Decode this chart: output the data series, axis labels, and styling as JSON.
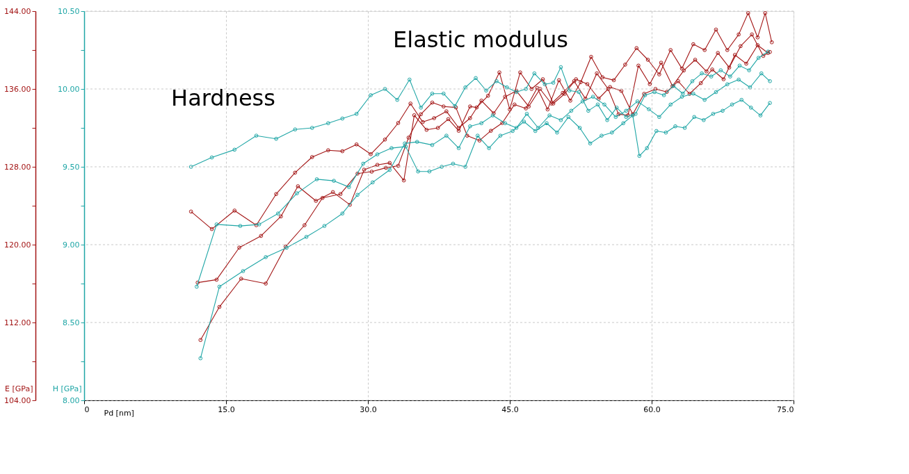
{
  "chart_data": {
    "type": "line",
    "xlabel": "Pd [nm]",
    "ylabel": "E [GPa]",
    "y2label": "H [GPa]",
    "annotations": [
      "Hardness",
      "Elastic modulus"
    ],
    "marker": "circle",
    "line_style": "solid",
    "grid": true,
    "legend": false,
    "xlim": [
      0,
      75
    ],
    "xticks": [
      0,
      {
        "value": 15,
        "label": "15.0"
      },
      {
        "value": 30,
        "label": "30.0"
      },
      {
        "value": 45,
        "label": "45.0"
      },
      {
        "value": 60,
        "label": "60.0"
      },
      {
        "value": 75,
        "label": "75.0"
      }
    ],
    "ylim": [
      104,
      144
    ],
    "yticks": [
      {
        "value": 104,
        "label": "104.00"
      },
      {
        "value": 108,
        "label": null
      },
      {
        "value": 112,
        "label": "112.00"
      },
      {
        "value": 116,
        "label": null
      },
      {
        "value": 120,
        "label": "120.00"
      },
      {
        "value": 124,
        "label": null
      },
      {
        "value": 128,
        "label": "128.00"
      },
      {
        "value": 132,
        "label": null
      },
      {
        "value": 136,
        "label": "136.00"
      },
      {
        "value": 140,
        "label": null
      },
      {
        "value": 144,
        "label": "144.00"
      }
    ],
    "y2lim": [
      8,
      10.5
    ],
    "y2ticks": [
      {
        "value": 8,
        "label": "8.00"
      },
      {
        "value": 8.25,
        "label": null
      },
      {
        "value": 8.5,
        "label": "8.50"
      },
      {
        "value": 8.75,
        "label": null
      },
      {
        "value": 9,
        "label": "9.00"
      },
      {
        "value": 9.25,
        "label": null
      },
      {
        "value": 9.5,
        "label": "9.50"
      },
      {
        "value": 9.75,
        "label": null
      },
      {
        "value": 10,
        "label": "10.00"
      },
      {
        "value": 10.25,
        "label": null
      },
      {
        "value": 10.5,
        "label": "10.50"
      }
    ],
    "series": [
      {
        "color": "#a31515",
        "axis": "y",
        "x": [
          11.3,
          13.5,
          15.9,
          18.2,
          20.3,
          22.3,
          24.1,
          25.8,
          27.3,
          28.8,
          30.3,
          31.8,
          33.2,
          34.5,
          35.8,
          37.0,
          38.3,
          39.6,
          40.8,
          42.0,
          43.3,
          44.5,
          45.7,
          47.0,
          48.2,
          49.4,
          50.6,
          51.8,
          53.0,
          54.2,
          55.4,
          56.5,
          57.5,
          58.6,
          59.8,
          61.0,
          62.2,
          63.4,
          64.6,
          65.8,
          67.0,
          68.2,
          69.4,
          70.6,
          71.8,
          72.5
        ],
        "values": [
          123.4,
          121.6,
          123.5,
          122.0,
          125.2,
          127.4,
          129.0,
          129.7,
          129.6,
          130.3,
          129.3,
          130.8,
          132.5,
          134.5,
          132.6,
          133.0,
          133.7,
          132.0,
          133.0,
          134.8,
          133.5,
          135.2,
          135.8,
          134.2,
          136.0,
          134.5,
          135.6,
          136.8,
          135.0,
          137.6,
          136.0,
          133.4,
          133.3,
          138.4,
          136.5,
          138.7,
          136.3,
          137.9,
          139.0,
          137.8,
          139.7,
          138.2,
          140.4,
          141.6,
          139.4,
          139.8
        ]
      },
      {
        "color": "#a31515",
        "axis": "y",
        "x": [
          12.0,
          14.0,
          16.4,
          18.7,
          20.8,
          22.6,
          24.5,
          26.3,
          28.1,
          29.6,
          31.0,
          32.3,
          33.8,
          34.9,
          36.2,
          37.4,
          38.5,
          39.6,
          40.8,
          41.5,
          42.7,
          43.9,
          45.0,
          46.1,
          47.3,
          48.5,
          49.6,
          50.8,
          52.0,
          53.2,
          54.4,
          55.6,
          56.8,
          58.0,
          59.2,
          60.4,
          61.6,
          62.8,
          64.0,
          65.2,
          66.4,
          67.6,
          68.8,
          70.0,
          71.2,
          72.3
        ],
        "values": [
          116.1,
          116.4,
          119.7,
          120.9,
          122.9,
          126.0,
          124.5,
          125.4,
          124.1,
          127.7,
          128.2,
          128.4,
          126.6,
          133.3,
          131.8,
          132.0,
          132.9,
          131.7,
          134.2,
          134.1,
          135.3,
          137.7,
          133.9,
          137.7,
          136.0,
          137.0,
          134.5,
          135.5,
          137.0,
          136.5,
          135.0,
          136.2,
          135.8,
          133.4,
          135.5,
          136.0,
          135.7,
          136.8,
          135.5,
          136.6,
          138.0,
          137.0,
          139.5,
          138.6,
          140.5,
          139.7
        ]
      },
      {
        "color": "#a31515",
        "axis": "y",
        "x": [
          12.3,
          14.3,
          16.6,
          19.2,
          21.3,
          23.3,
          25.2,
          27.1,
          28.9,
          30.4,
          31.9,
          33.2,
          34.3,
          35.6,
          36.8,
          38.0,
          39.3,
          40.5,
          41.8,
          43.0,
          44.2,
          45.5,
          46.7,
          47.9,
          49.0,
          50.2,
          51.4,
          52.5,
          53.6,
          54.8,
          56.0,
          57.2,
          58.4,
          59.6,
          60.8,
          62.0,
          63.2,
          64.4,
          65.6,
          66.8,
          68.0,
          69.2,
          70.2,
          71.2,
          72.0,
          72.7
        ],
        "values": [
          110.2,
          113.6,
          116.5,
          116.0,
          119.8,
          122.0,
          124.8,
          125.2,
          127.3,
          127.5,
          127.9,
          128.1,
          131.0,
          133.4,
          134.6,
          134.2,
          134.1,
          131.2,
          130.7,
          131.7,
          132.5,
          134.4,
          134.0,
          136.1,
          133.9,
          136.9,
          134.8,
          136.7,
          139.3,
          137.2,
          136.9,
          138.5,
          140.2,
          139.0,
          137.5,
          140.0,
          138.1,
          140.6,
          140.0,
          142.1,
          140.0,
          141.6,
          143.8,
          141.3,
          143.8,
          140.8
        ]
      },
      {
        "color": "#1fa6a6",
        "axis": "y2",
        "x": [
          11.3,
          13.5,
          15.9,
          18.2,
          20.3,
          22.3,
          24.1,
          25.8,
          27.3,
          28.8,
          30.3,
          31.8,
          33.1,
          34.4,
          35.6,
          36.8,
          38.0,
          39.2,
          40.3,
          41.4,
          42.5,
          43.6,
          44.7,
          45.7,
          46.7,
          47.6,
          48.7,
          49.6,
          50.4,
          51.3,
          52.3,
          53.3,
          54.3,
          55.3,
          56.3,
          57.3,
          58.3,
          59.3,
          60.3,
          61.3,
          62.3,
          63.3,
          64.3,
          65.3,
          66.3,
          67.3,
          68.3,
          69.3,
          70.3,
          71.3,
          72.3
        ],
        "values": [
          9.5,
          9.56,
          9.61,
          9.7,
          9.68,
          9.74,
          9.75,
          9.78,
          9.81,
          9.84,
          9.96,
          10.0,
          9.93,
          10.06,
          9.88,
          9.97,
          9.97,
          9.89,
          10.01,
          10.07,
          9.99,
          10.05,
          10.01,
          9.98,
          10.0,
          10.1,
          10.03,
          10.04,
          10.14,
          9.99,
          9.98,
          9.86,
          9.9,
          9.8,
          9.88,
          9.82,
          9.84,
          9.96,
          9.98,
          9.96,
          10.02,
          9.97,
          10.05,
          10.1,
          10.08,
          10.12,
          10.08,
          10.15,
          10.12,
          10.2,
          10.24
        ]
      },
      {
        "color": "#1fa6a6",
        "axis": "y2",
        "x": [
          11.9,
          14.0,
          16.5,
          18.5,
          20.5,
          22.5,
          24.6,
          26.4,
          28.0,
          29.5,
          31.0,
          32.5,
          34.0,
          35.3,
          36.5,
          37.8,
          39.0,
          40.3,
          41.6,
          42.8,
          44.0,
          45.3,
          46.5,
          47.7,
          48.9,
          50.0,
          51.2,
          52.4,
          53.5,
          54.7,
          55.8,
          57.0,
          58.0,
          58.7,
          59.5,
          60.5,
          61.5,
          62.5,
          63.5,
          64.5,
          65.5,
          66.5,
          67.5,
          68.5,
          69.5,
          70.5,
          71.5,
          72.5
        ],
        "values": [
          8.73,
          9.13,
          9.12,
          9.13,
          9.2,
          9.33,
          9.42,
          9.41,
          9.37,
          9.52,
          9.58,
          9.62,
          9.63,
          9.47,
          9.47,
          9.5,
          9.52,
          9.5,
          9.7,
          9.62,
          9.7,
          9.73,
          9.79,
          9.73,
          9.78,
          9.72,
          9.82,
          9.75,
          9.65,
          9.7,
          9.72,
          9.78,
          9.83,
          9.57,
          9.62,
          9.73,
          9.72,
          9.76,
          9.75,
          9.82,
          9.8,
          9.84,
          9.86,
          9.9,
          9.93,
          9.88,
          9.83,
          9.91
        ]
      },
      {
        "color": "#1fa6a6",
        "axis": "y2",
        "x": [
          12.3,
          14.3,
          16.8,
          19.2,
          21.4,
          23.5,
          25.4,
          27.3,
          28.9,
          30.5,
          32.3,
          33.9,
          35.2,
          36.8,
          38.3,
          39.6,
          40.8,
          42.0,
          43.2,
          44.5,
          45.7,
          46.8,
          48.0,
          49.2,
          50.4,
          51.5,
          52.7,
          53.8,
          55.0,
          56.2,
          57.3,
          58.5,
          59.7,
          60.8,
          62.0,
          63.2,
          64.4,
          65.6,
          66.8,
          68.0,
          69.2,
          70.4,
          71.6,
          72.5
        ],
        "values": [
          8.27,
          8.73,
          8.83,
          8.92,
          8.98,
          9.05,
          9.12,
          9.2,
          9.32,
          9.4,
          9.48,
          9.65,
          9.66,
          9.64,
          9.7,
          9.62,
          9.76,
          9.78,
          9.83,
          9.78,
          9.75,
          9.84,
          9.75,
          9.83,
          9.8,
          9.86,
          9.92,
          9.95,
          9.9,
          9.82,
          9.86,
          9.92,
          9.87,
          9.82,
          9.9,
          9.95,
          9.97,
          9.93,
          9.98,
          10.03,
          10.06,
          10.01,
          10.1,
          10.05
        ]
      }
    ]
  }
}
